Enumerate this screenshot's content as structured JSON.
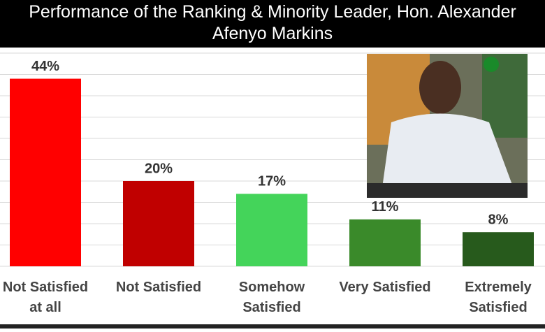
{
  "chart_data": {
    "type": "bar",
    "title": "Performance of the Ranking & Minority Leader, Hon. Alexander Afenyo Markins",
    "categories": [
      "Not Satisfied at all",
      "Not Satisfied",
      "Somehow Satisfied",
      "Very Satisfied",
      "Extremely Satisfied"
    ],
    "values": [
      44,
      20,
      17,
      11,
      8
    ],
    "value_labels": [
      "44%",
      "20%",
      "17%",
      "11%",
      "8%"
    ],
    "colors": [
      "#ff0000",
      "#c00000",
      "#44d45a",
      "#3a8a2a",
      "#275a1c"
    ],
    "ylim": [
      0,
      50
    ],
    "yticks": [
      0,
      5,
      10,
      15,
      20,
      25,
      30,
      35,
      40,
      45,
      50
    ],
    "grid": true
  }
}
